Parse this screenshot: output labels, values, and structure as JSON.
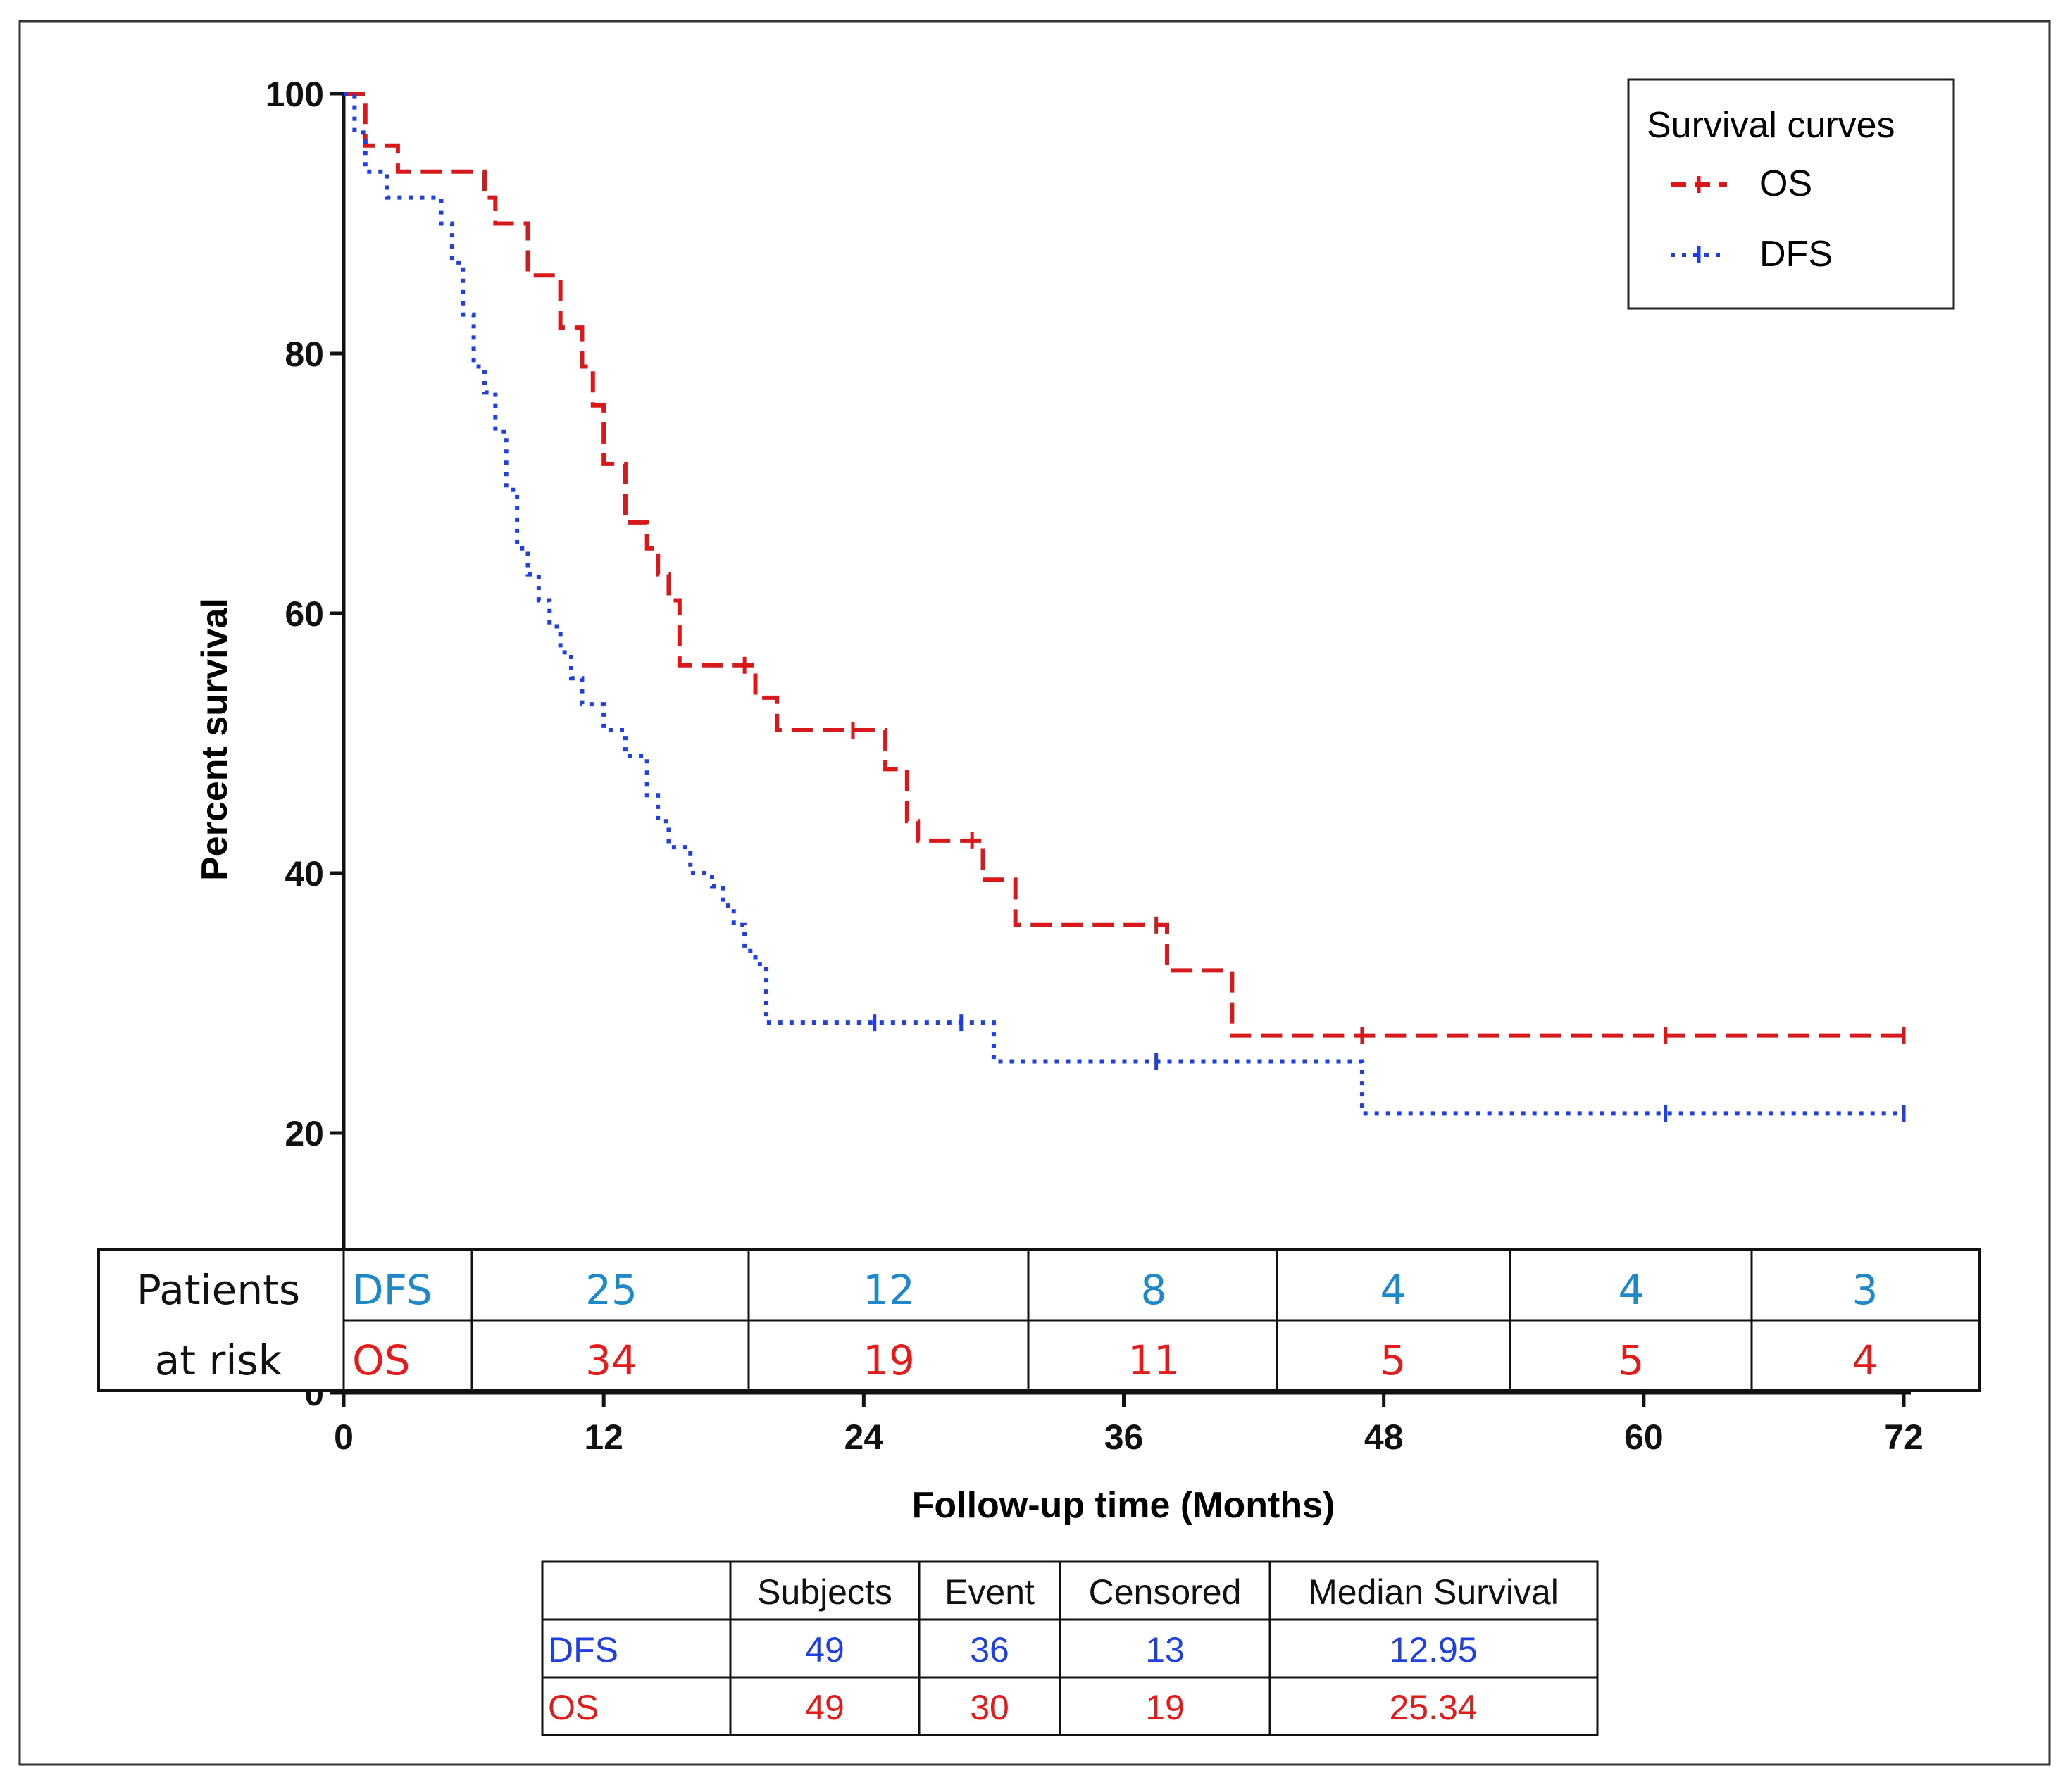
{
  "chart_data": {
    "type": "line",
    "subtype": "kaplan-meier-step",
    "xlabel": "Follow-up time (Months)",
    "ylabel": "Percent survival",
    "xlim": [
      0,
      72
    ],
    "ylim": [
      0,
      100
    ],
    "xticks": [
      0,
      12,
      24,
      36,
      48,
      60,
      72
    ],
    "yticks": [
      0,
      20,
      40,
      60,
      80,
      100
    ],
    "legend": {
      "title": "Survival curves",
      "position": "top-right",
      "entries": [
        {
          "name": "OS",
          "color": "#d7191c",
          "style": "dashed"
        },
        {
          "name": "DFS",
          "color": "#1f3fe0",
          "style": "dotted"
        }
      ]
    },
    "series": [
      {
        "name": "OS",
        "color": "#d7191c",
        "x": [
          0,
          1,
          2.5,
          5.5,
          6.5,
          7,
          8.5,
          10,
          11,
          11.5,
          12,
          13,
          14,
          14.5,
          15,
          15.5,
          16,
          18,
          19,
          20,
          21,
          24,
          25,
          26,
          26.5,
          27,
          29,
          29.5,
          31,
          34,
          37,
          38,
          40,
          41,
          47,
          61,
          72
        ],
        "y": [
          100,
          96,
          94,
          94,
          92,
          90,
          86,
          82,
          79,
          76,
          71.5,
          67,
          65,
          63,
          61,
          56,
          56,
          56,
          53.5,
          51,
          51,
          51,
          48,
          44,
          42.5,
          42.5,
          42.5,
          39.5,
          36,
          36,
          36,
          32.5,
          32.5,
          27.5,
          27.5,
          27.5,
          27.5
        ],
        "censored_x": [
          18.5,
          23.5,
          29,
          37.5,
          47,
          61,
          72
        ]
      },
      {
        "name": "DFS",
        "color": "#1f3fe0",
        "x": [
          0,
          0.5,
          1,
          2,
          3,
          4.5,
          5,
          5.5,
          6,
          6.5,
          7,
          7.5,
          8,
          8.5,
          9,
          9.5,
          10,
          10.5,
          11,
          12,
          13,
          14,
          14.5,
          15,
          16,
          17,
          17.5,
          18,
          18.5,
          19,
          19.5,
          24.5,
          29,
          30,
          37,
          46.5,
          47,
          61,
          72
        ],
        "y": [
          100,
          97,
          94,
          92,
          92,
          90,
          87,
          83,
          79,
          77,
          74,
          69.5,
          65,
          63,
          61,
          59,
          57,
          55,
          53,
          51,
          49,
          46,
          44,
          42,
          40,
          39,
          37.5,
          36,
          34,
          33,
          28.5,
          28.5,
          28.5,
          25.5,
          25.5,
          25.5,
          21.5,
          21.5,
          21.5
        ],
        "censored_x": [
          24.5,
          28.5,
          37.5,
          61,
          72
        ]
      }
    ]
  },
  "risk_table": {
    "label_line1": "Patients",
    "label_line2": "at risk",
    "rows": [
      {
        "name": "DFS",
        "color": "#1e88c9",
        "values": [
          "25",
          "12",
          "8",
          "4",
          "4",
          "3"
        ]
      },
      {
        "name": "OS",
        "color": "#e31b1b",
        "values": [
          "34",
          "19",
          "11",
          "5",
          "5",
          "4"
        ]
      }
    ]
  },
  "summary_table": {
    "headers": [
      "",
      "Subjects",
      "Event",
      "Censored",
      "Median Survival"
    ],
    "rows": [
      {
        "name": "DFS",
        "color": "#1f3fe0",
        "values": [
          "49",
          "36",
          "13",
          "12.95"
        ]
      },
      {
        "name": "OS",
        "color": "#e31b1b",
        "values": [
          "49",
          "30",
          "19",
          "25.34"
        ]
      }
    ]
  }
}
